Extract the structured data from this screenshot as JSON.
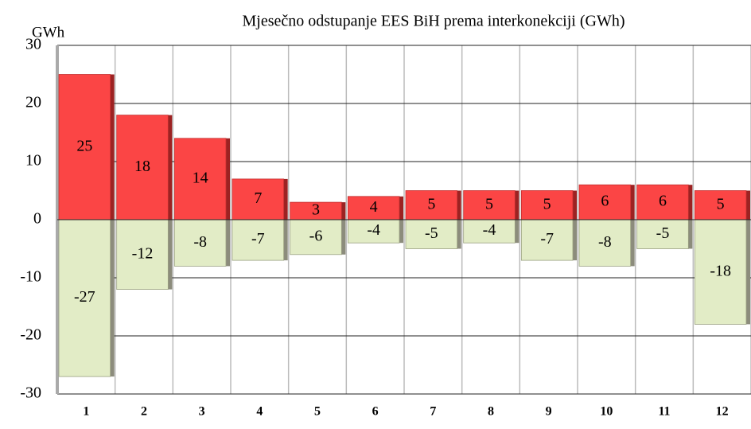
{
  "chart_data": {
    "type": "bar",
    "title": "Mjesečno odstupanje EES BiH prema interkonekciji (GWh)",
    "y_label": "GWh",
    "categories": [
      "1",
      "2",
      "3",
      "4",
      "5",
      "6",
      "7",
      "8",
      "9",
      "10",
      "11",
      "12"
    ],
    "series": [
      {
        "color": "#fb4545",
        "values": [
          25,
          18,
          14,
          7,
          3,
          4,
          5,
          5,
          5,
          6,
          6,
          5
        ]
      },
      {
        "color": "#e2ecc6",
        "values": [
          -27,
          -12,
          -8,
          -7,
          -6,
          -4,
          -5,
          -4,
          -7,
          -8,
          -5,
          -18
        ]
      }
    ],
    "ylim": [
      -30,
      30
    ],
    "yticks": [
      -30,
      -20,
      -10,
      0,
      10,
      20,
      30
    ],
    "grid": true
  }
}
